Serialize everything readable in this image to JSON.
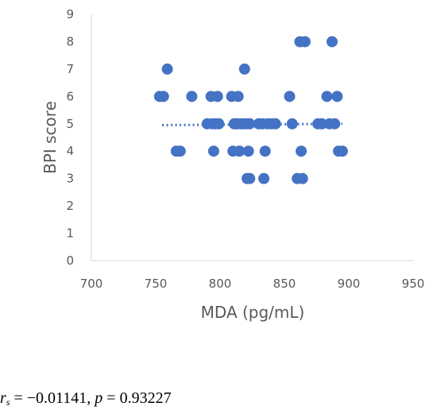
{
  "chart_data": {
    "type": "scatter",
    "xlabel": "MDA (pg/mL)",
    "ylabel": "BPI score",
    "xlim": [
      700,
      950
    ],
    "ylim": [
      0,
      9
    ],
    "xticks": [
      "700",
      "750",
      "800",
      "850",
      "900",
      "950"
    ],
    "yticks": [
      "0",
      "1",
      "2",
      "3",
      "4",
      "5",
      "6",
      "7",
      "8",
      "9"
    ],
    "grid": false,
    "legend": "none",
    "marker_color": "#4472C4",
    "trendline": {
      "style": "dotted",
      "color": "#4472C4",
      "x": [
        755,
        895
      ],
      "y": [
        4.95,
        5.0
      ]
    },
    "points": [
      {
        "x": 753,
        "y": 6
      },
      {
        "x": 756,
        "y": 6
      },
      {
        "x": 759,
        "y": 7
      },
      {
        "x": 766,
        "y": 4
      },
      {
        "x": 769,
        "y": 4
      },
      {
        "x": 778,
        "y": 6
      },
      {
        "x": 790,
        "y": 5
      },
      {
        "x": 793,
        "y": 6
      },
      {
        "x": 794,
        "y": 5
      },
      {
        "x": 795,
        "y": 4
      },
      {
        "x": 796,
        "y": 5
      },
      {
        "x": 798,
        "y": 6
      },
      {
        "x": 799,
        "y": 5
      },
      {
        "x": 809,
        "y": 6
      },
      {
        "x": 810,
        "y": 4
      },
      {
        "x": 811,
        "y": 5
      },
      {
        "x": 812,
        "y": 5
      },
      {
        "x": 813,
        "y": 5
      },
      {
        "x": 814,
        "y": 6
      },
      {
        "x": 815,
        "y": 4
      },
      {
        "x": 816,
        "y": 5
      },
      {
        "x": 818,
        "y": 5
      },
      {
        "x": 819,
        "y": 7
      },
      {
        "x": 820,
        "y": 5
      },
      {
        "x": 821,
        "y": 3
      },
      {
        "x": 822,
        "y": 4
      },
      {
        "x": 823,
        "y": 5
      },
      {
        "x": 823,
        "y": 3
      },
      {
        "x": 830,
        "y": 5
      },
      {
        "x": 833,
        "y": 5
      },
      {
        "x": 834,
        "y": 3
      },
      {
        "x": 835,
        "y": 4
      },
      {
        "x": 837,
        "y": 5
      },
      {
        "x": 840,
        "y": 5
      },
      {
        "x": 843,
        "y": 5
      },
      {
        "x": 854,
        "y": 6
      },
      {
        "x": 856,
        "y": 5
      },
      {
        "x": 860,
        "y": 3
      },
      {
        "x": 862,
        "y": 8
      },
      {
        "x": 863,
        "y": 4
      },
      {
        "x": 864,
        "y": 3
      },
      {
        "x": 866,
        "y": 8
      },
      {
        "x": 876,
        "y": 5
      },
      {
        "x": 879,
        "y": 5
      },
      {
        "x": 883,
        "y": 6
      },
      {
        "x": 885,
        "y": 5
      },
      {
        "x": 887,
        "y": 8
      },
      {
        "x": 889,
        "y": 5
      },
      {
        "x": 891,
        "y": 6
      },
      {
        "x": 892,
        "y": 4
      },
      {
        "x": 895,
        "y": 4
      }
    ]
  },
  "stats": {
    "r_symbol": "r",
    "r_sub": "s",
    "r_text": " = −0.01141, ",
    "p_symbol": "p",
    "p_text": " = 0.93227"
  }
}
